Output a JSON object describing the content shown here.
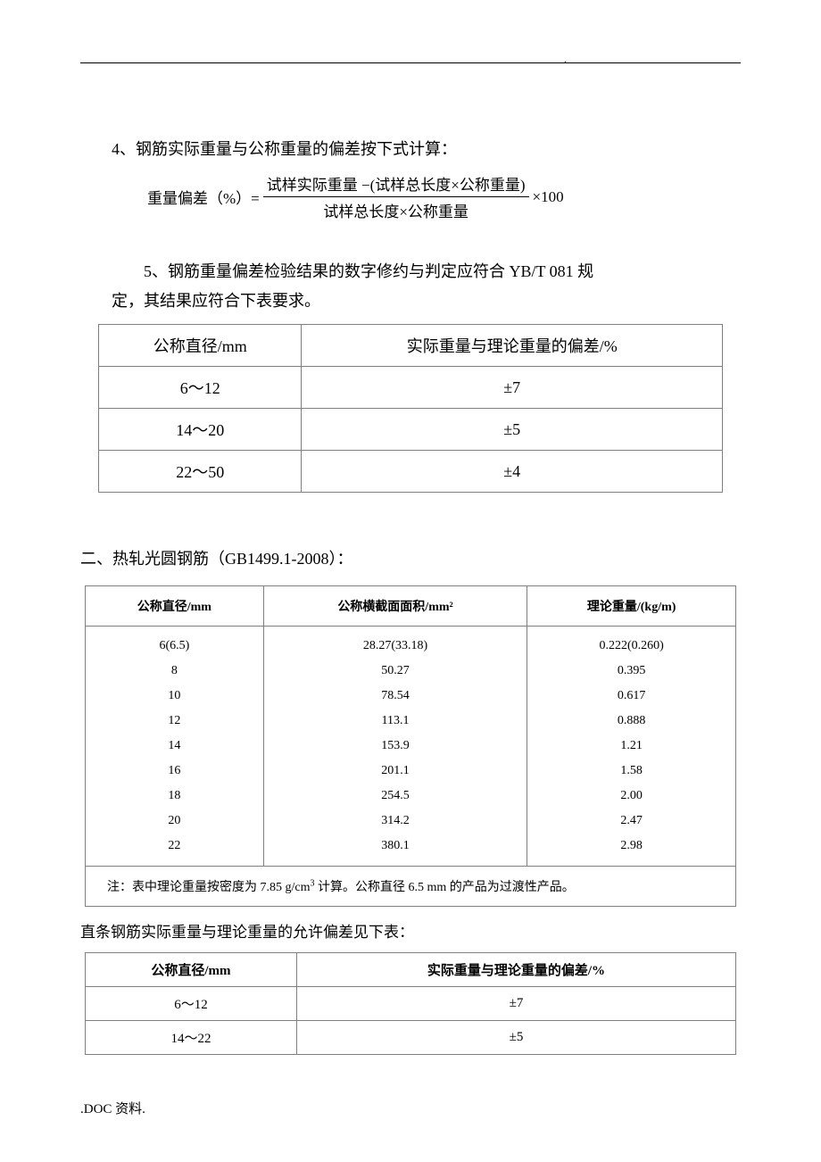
{
  "para4": "4、钢筋实际重量与公称重量的偏差按下式计算：",
  "formula": {
    "lhs": "重量偏差（%）=",
    "num": "试样实际重量 −(试样总长度×公称重量)",
    "den": "试样总长度×公称重量",
    "tail": "×100"
  },
  "para5_line1": "5、钢筋重量偏差检验结果的数字修约与判定应符合 YB/T 081 规",
  "para5_line2": "定，其结果应符合下表要求。",
  "table1": {
    "headers": [
      "公称直径/mm",
      "实际重量与理论重量的偏差/%"
    ],
    "rows": [
      [
        "6～12",
        "±7"
      ],
      [
        "14～20",
        "±5"
      ],
      [
        "22～50",
        "±4"
      ]
    ]
  },
  "section2_title": "二、热轧光圆钢筋（GB1499.1-2008）：",
  "table2": {
    "headers": [
      "公称直径/mm",
      "公称横截面面积/mm²",
      "理论重量/(kg/m)"
    ],
    "rows": [
      [
        "6(6.5)",
        "28.27(33.18)",
        "0.222(0.260)"
      ],
      [
        "8",
        "50.27",
        "0.395"
      ],
      [
        "10",
        "78.54",
        "0.617"
      ],
      [
        "12",
        "113.1",
        "0.888"
      ],
      [
        "14",
        "153.9",
        "1.21"
      ],
      [
        "16",
        "201.1",
        "1.58"
      ],
      [
        "18",
        "254.5",
        "2.00"
      ],
      [
        "20",
        "314.2",
        "2.47"
      ],
      [
        "22",
        "380.1",
        "2.98"
      ]
    ],
    "note_prefix": "注：表中理论重量按密度为 7.85 g/cm",
    "note_sup": "3",
    "note_suffix": " 计算。公称直径 6.5 mm 的产品为过渡性产品。"
  },
  "caption3": "直条钢筋实际重量与理论重量的允许偏差见下表：",
  "table3": {
    "headers": [
      "公称直径/mm",
      "实际重量与理论重量的偏差/%"
    ],
    "rows": [
      [
        "6～12",
        "±7"
      ],
      [
        "14～22",
        "±5"
      ]
    ]
  },
  "footer": ".DOC 资料."
}
